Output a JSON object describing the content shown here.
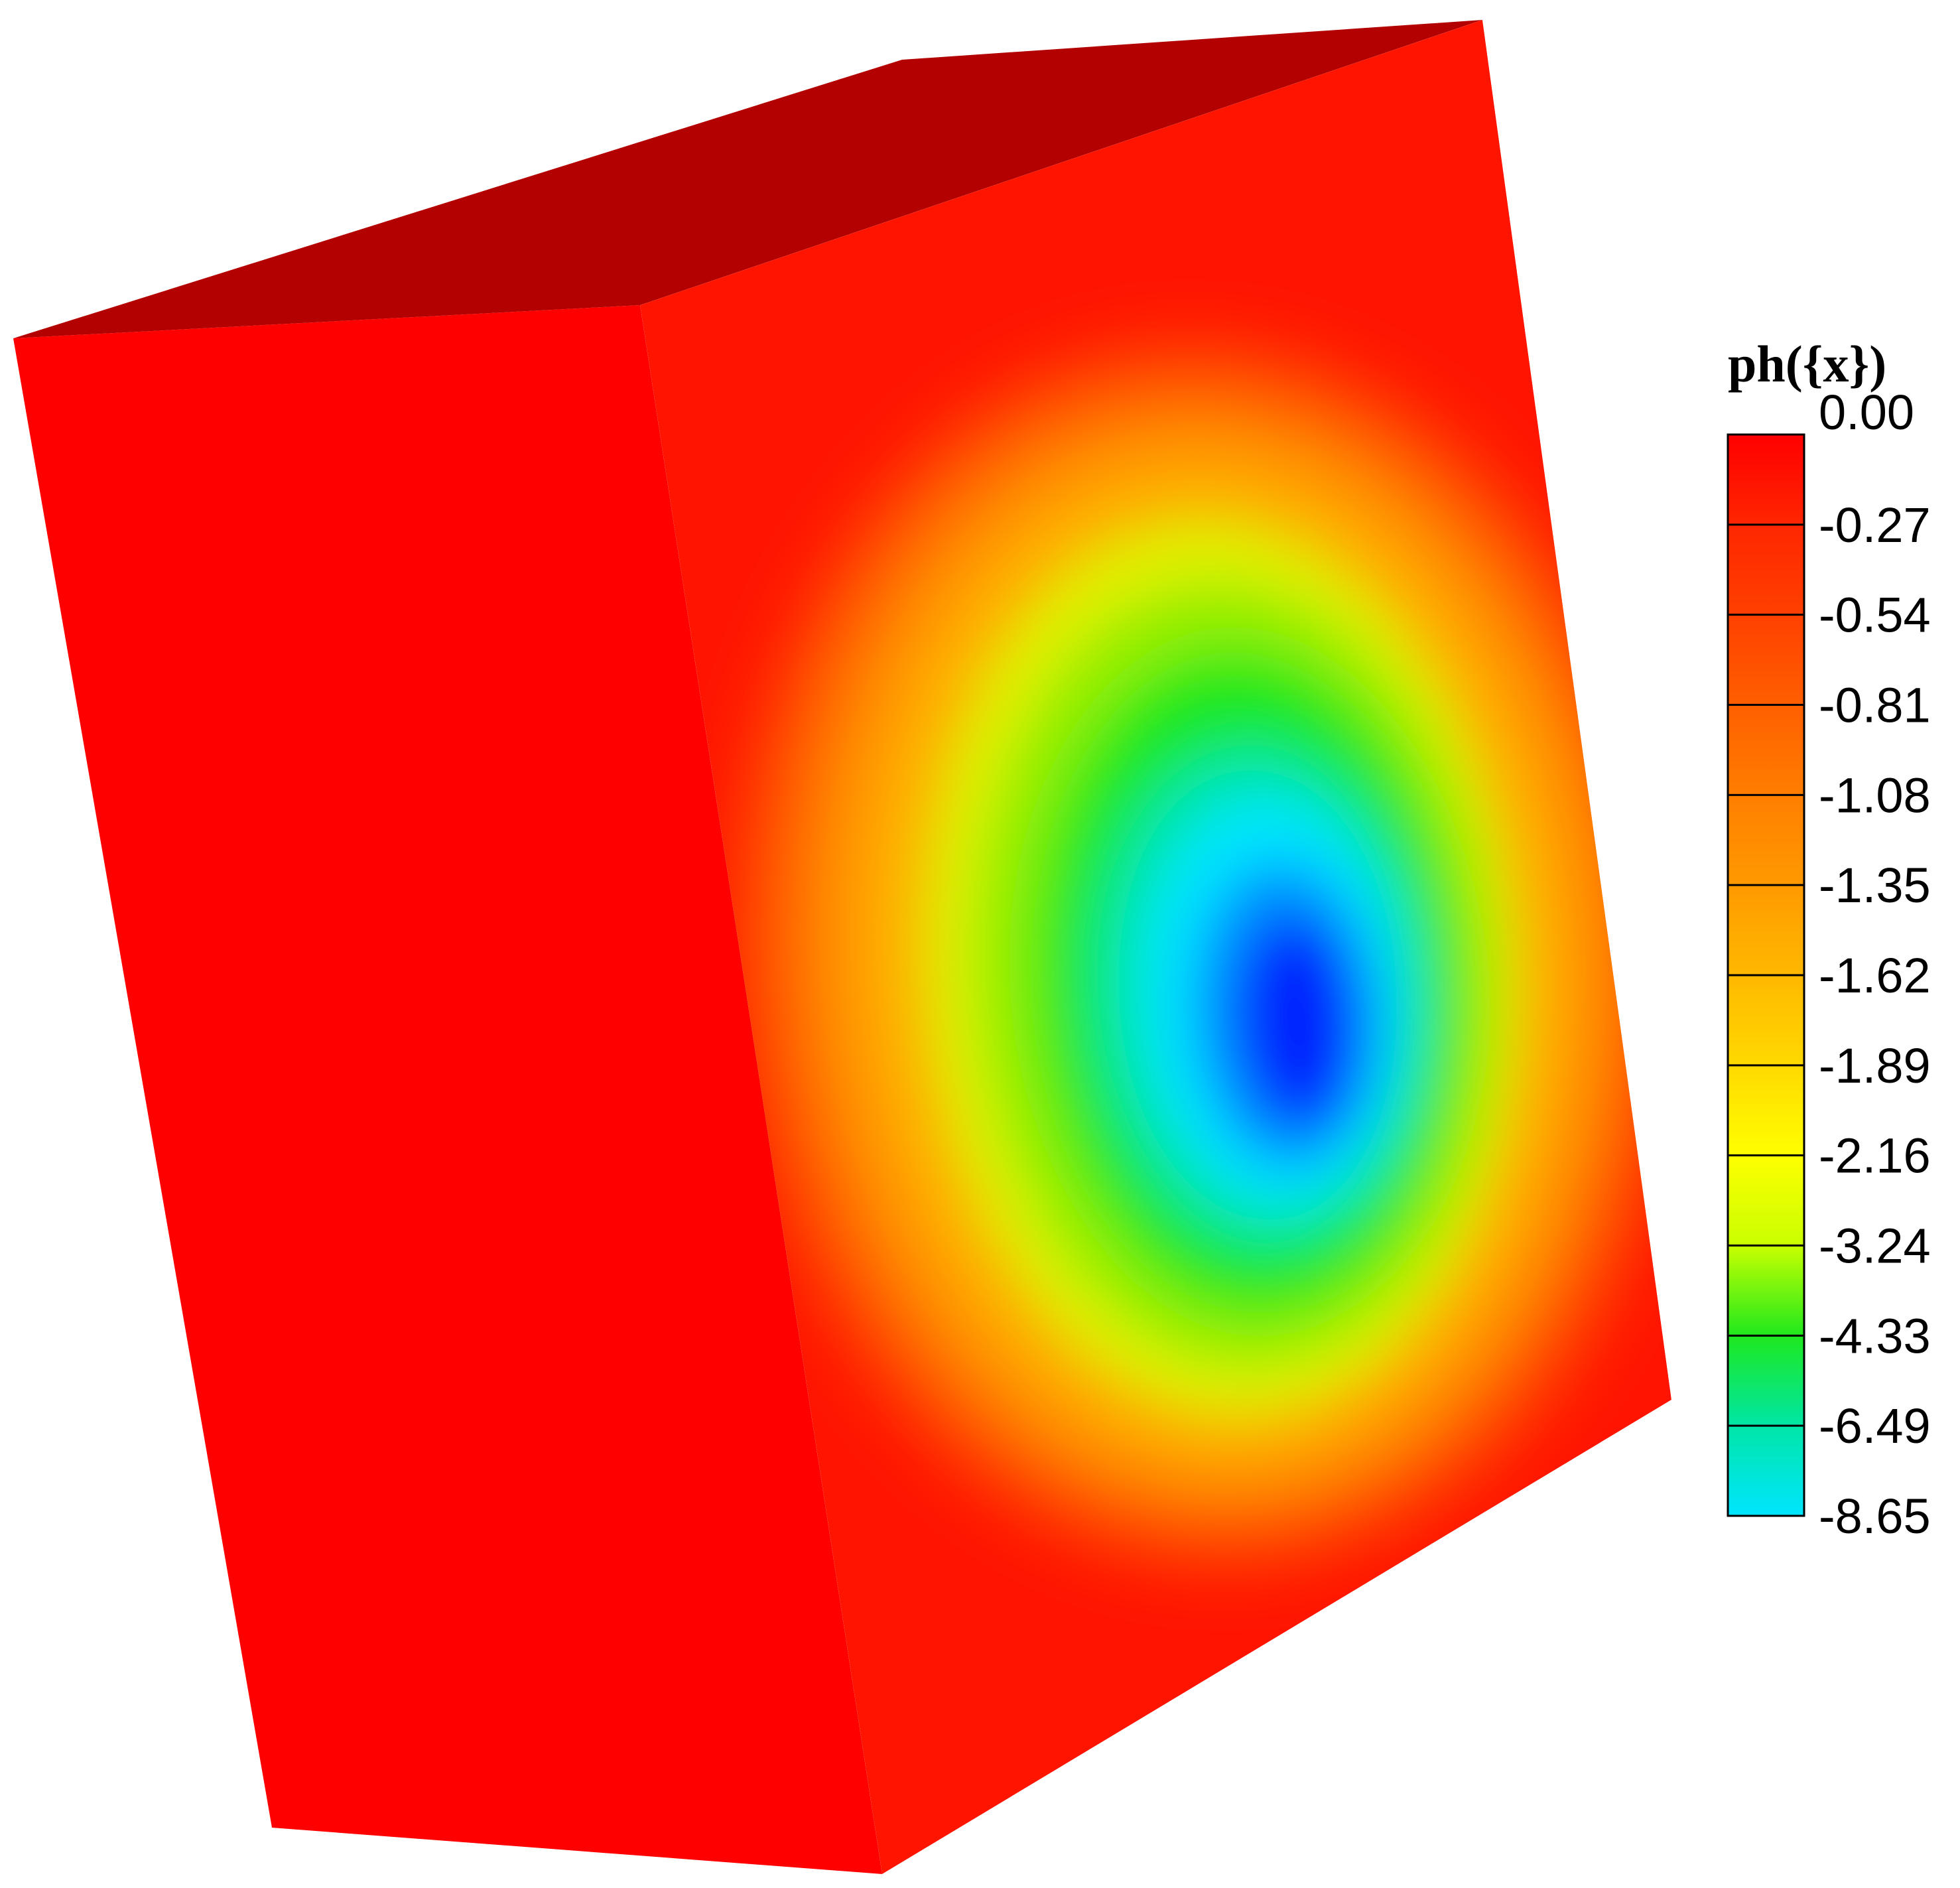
{
  "figure": {
    "variable_label": "ph({x})",
    "colorbar": {
      "levels": [
        "0.00",
        "-0.27",
        "-0.54",
        "-0.81",
        "-1.08",
        "-1.35",
        "-1.62",
        "-1.89",
        "-2.16",
        "-3.24",
        "-4.33",
        "-6.49",
        "-8.65"
      ],
      "band_colors": [
        "#ff0000",
        "#ff2600",
        "#ff4000",
        "#ff5f00",
        "#ff7e00",
        "#ff9a00",
        "#ffb800",
        "#ffd900",
        "#ffff00",
        "#c8ff00",
        "#1ee81e",
        "#00e6a8",
        "#00e5ff",
        "#0033ff"
      ]
    },
    "colors": {
      "side_face": "#ff0000",
      "top_face": "#b30000",
      "front_face_edge": "#ff1200",
      "front_face_min": "#0020ff"
    }
  }
}
